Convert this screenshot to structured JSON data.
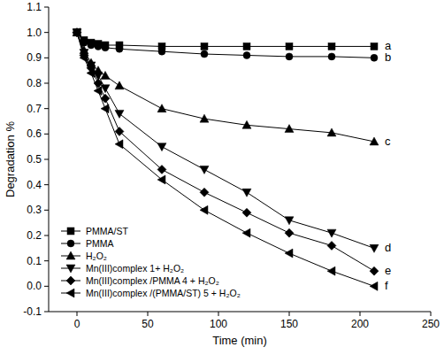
{
  "chart_data": {
    "type": "line",
    "x_label": "Time (min)",
    "y_label": "Degradation %",
    "x": [
      0,
      5,
      10,
      15,
      20,
      30,
      60,
      90,
      120,
      150,
      180,
      210
    ],
    "xlim": [
      -20,
      250
    ],
    "xticks": [
      0,
      50,
      100,
      150,
      200,
      250
    ],
    "ylim": [
      -0.1,
      1.1
    ],
    "yticks": [
      -0.1,
      {
        "value": 0,
        "label": "0.0"
      },
      0.1,
      0.2,
      0.3,
      0.4,
      0.5,
      0.6,
      0.7,
      0.8,
      0.9,
      {
        "value": 1,
        "label": "1.0"
      },
      1.1
    ],
    "legend": "lower left",
    "grid": false,
    "series": [
      {
        "name": "PMMA/ST",
        "label": "a",
        "color": "#000000",
        "marker": "square",
        "line_style": "solid",
        "values": [
          1.0,
          0.97,
          0.96,
          0.955,
          0.95,
          0.95,
          0.945,
          0.945,
          0.945,
          0.945,
          0.945,
          0.945
        ]
      },
      {
        "name": "PMMA",
        "label": "b",
        "color": "#000000",
        "marker": "circle",
        "line_style": "solid",
        "values": [
          1.0,
          0.96,
          0.95,
          0.945,
          0.94,
          0.935,
          0.925,
          0.915,
          0.91,
          0.905,
          0.905,
          0.9
        ]
      },
      {
        "name": "H₂O₂",
        "label": "c",
        "color": "#000000",
        "marker": "triangle-up",
        "line_style": "solid",
        "values": [
          1.0,
          0.93,
          0.88,
          0.85,
          0.83,
          0.79,
          0.7,
          0.66,
          0.635,
          0.62,
          0.605,
          0.57
        ]
      },
      {
        "name": "Mn(III)complex 1+ H₂O₂",
        "label": "d",
        "color": "#000000",
        "marker": "triangle-down",
        "line_style": "solid",
        "values": [
          1.0,
          0.92,
          0.87,
          0.83,
          0.78,
          0.68,
          0.55,
          0.46,
          0.37,
          0.26,
          0.21,
          0.15
        ]
      },
      {
        "name": "Mn(III)complex /PMMA 4 + H₂O₂",
        "label": "e",
        "color": "#000000",
        "marker": "diamond",
        "line_style": "solid",
        "values": [
          1.0,
          0.91,
          0.86,
          0.8,
          0.74,
          0.61,
          0.46,
          0.37,
          0.29,
          0.21,
          0.16,
          0.06
        ]
      },
      {
        "name": "Mn(III)complex /(PMMA/ST) 5 + H₂O₂",
        "label": "f",
        "color": "#000000",
        "marker": "triangle-left",
        "line_style": "solid",
        "values": [
          1.0,
          0.9,
          0.84,
          0.77,
          0.7,
          0.56,
          0.42,
          0.3,
          0.21,
          0.13,
          0.06,
          0.0
        ]
      }
    ]
  }
}
